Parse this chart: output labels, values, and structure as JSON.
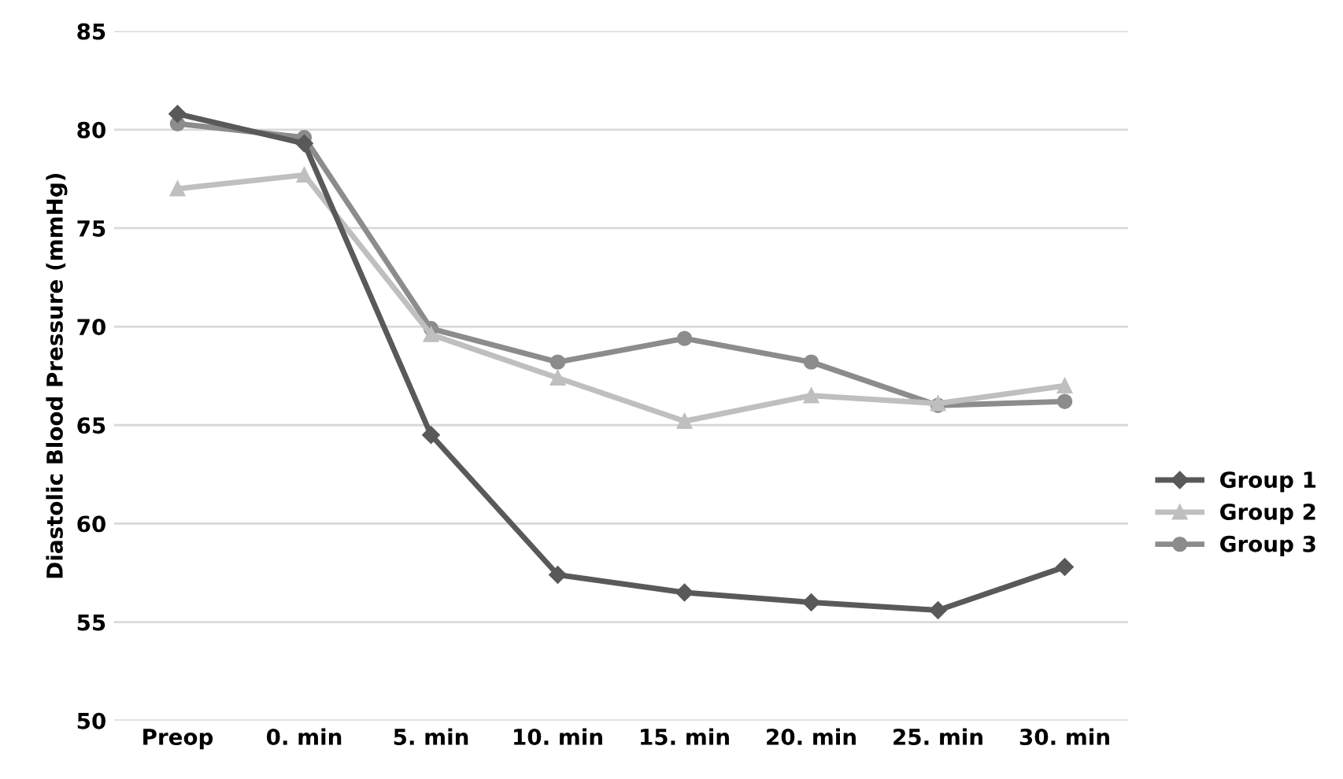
{
  "chart_data": {
    "type": "line",
    "ylabel": "Diastolic Blood Pressure (mmHg)",
    "categories": [
      "Preop",
      "0. min",
      "5. min",
      "10. min",
      "15. min",
      "20. min",
      "25. min",
      "30. min"
    ],
    "series": [
      {
        "name": "Group 1",
        "color": "#595959",
        "marker": "diamond",
        "values": [
          80.8,
          79.3,
          64.5,
          57.4,
          56.5,
          56.0,
          55.6,
          57.8
        ]
      },
      {
        "name": "Group 2",
        "color": "#bfbfbf",
        "marker": "triangle",
        "values": [
          77.0,
          77.7,
          69.6,
          67.4,
          65.2,
          66.5,
          66.1,
          67.0
        ]
      },
      {
        "name": "Group 3",
        "color": "#8c8c8c",
        "marker": "circle",
        "values": [
          80.3,
          79.6,
          69.9,
          68.2,
          69.4,
          68.2,
          66.0,
          66.2
        ]
      }
    ],
    "ylim": [
      50,
      85
    ],
    "yticks": [
      50,
      55,
      60,
      65,
      70,
      75,
      80,
      85
    ],
    "grid": "y",
    "legend": "right",
    "line_style": "solid"
  }
}
